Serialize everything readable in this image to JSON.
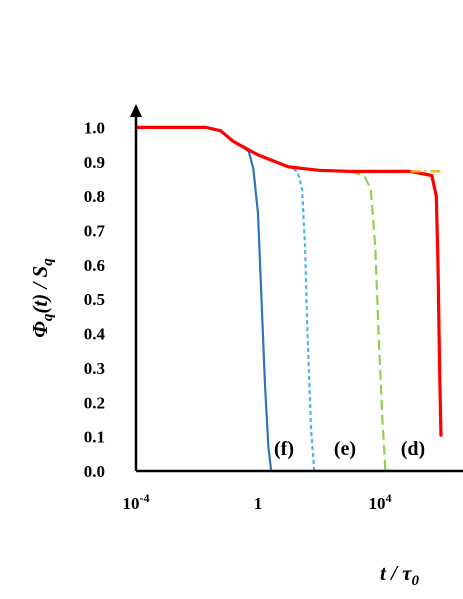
{
  "chart_data": {
    "type": "line",
    "title": "",
    "xlabel": "t / τ0",
    "ylabel": "Φq(t) / Sq",
    "xscale": "log",
    "xlim": [
      0.0001,
      1000000
    ],
    "ylim": [
      0,
      1.05
    ],
    "x_ticks": [
      {
        "value": 0.0001,
        "base": "10",
        "exp": "-4"
      },
      {
        "value": 1,
        "base": "1",
        "exp": ""
      },
      {
        "value": 10000,
        "base": "10",
        "exp": "4"
      }
    ],
    "y_ticks": [
      "0.0",
      "0.1",
      "0.2",
      "0.3",
      "0.4",
      "0.5",
      "0.6",
      "0.7",
      "0.8",
      "0.9",
      "1.0"
    ],
    "grid": false,
    "legend": "none",
    "series": [
      {
        "label": "(f)",
        "color": "#2e75b6",
        "dash": "solid",
        "points": [
          [
            0.0001,
            1.0
          ],
          [
            0.02,
            1.0
          ],
          [
            0.06,
            0.99
          ],
          [
            0.15,
            0.96
          ],
          [
            0.3,
            0.945
          ],
          [
            0.5,
            0.93
          ],
          [
            0.7,
            0.88
          ],
          [
            1.0,
            0.75
          ],
          [
            1.3,
            0.5
          ],
          [
            1.7,
            0.25
          ],
          [
            2.2,
            0.07
          ],
          [
            2.7,
            0.0
          ],
          [
            20000,
            0.0
          ]
        ]
      },
      {
        "label": "(e)",
        "color": "#4fb3e8",
        "dash": "short",
        "points": [
          [
            0.0001,
            1.0
          ],
          [
            0.02,
            1.0
          ],
          [
            0.06,
            0.99
          ],
          [
            0.15,
            0.96
          ],
          [
            0.3,
            0.945
          ],
          [
            1,
            0.92
          ],
          [
            5,
            0.895
          ],
          [
            12,
            0.885
          ],
          [
            20,
            0.87
          ],
          [
            28,
            0.82
          ],
          [
            35,
            0.65
          ],
          [
            42,
            0.4
          ],
          [
            55,
            0.12
          ],
          [
            70,
            0.0
          ],
          [
            20000,
            0.0
          ]
        ]
      },
      {
        "label": "(d)",
        "color": "#92d050",
        "dash": "long",
        "points": [
          [
            0.0001,
            1.0
          ],
          [
            0.02,
            1.0
          ],
          [
            0.06,
            0.99
          ],
          [
            0.15,
            0.96
          ],
          [
            0.3,
            0.945
          ],
          [
            1,
            0.92
          ],
          [
            10,
            0.885
          ],
          [
            100,
            0.875
          ],
          [
            1000,
            0.872
          ],
          [
            3000,
            0.86
          ],
          [
            5000,
            0.82
          ],
          [
            7000,
            0.65
          ],
          [
            9000,
            0.4
          ],
          [
            12000,
            0.15
          ],
          [
            15000,
            0.0
          ],
          [
            1000000,
            0.0
          ]
        ]
      },
      {
        "label": "",
        "color": "#ff0000",
        "dash": "solid",
        "points": [
          [
            0.0001,
            1.0
          ],
          [
            0.02,
            1.0
          ],
          [
            0.06,
            0.99
          ],
          [
            0.15,
            0.96
          ],
          [
            0.3,
            0.945
          ],
          [
            1,
            0.92
          ],
          [
            10,
            0.885
          ],
          [
            100,
            0.875
          ],
          [
            1000,
            0.872
          ],
          [
            100000,
            0.872
          ],
          [
            500000,
            0.86
          ],
          [
            700000,
            0.8
          ],
          [
            800000,
            0.6
          ],
          [
            900000,
            0.3
          ],
          [
            1000000,
            0.1
          ]
        ]
      },
      {
        "label": "",
        "color": "#e040d0",
        "dash": "dashdot",
        "points": [
          [
            100000,
            0.872
          ],
          [
            1000000,
            0.872
          ]
        ]
      },
      {
        "label": "",
        "color": "#f5c000",
        "dash": "dashdot",
        "points": [
          [
            100000,
            0.872
          ],
          [
            1000000,
            0.872
          ]
        ]
      }
    ],
    "annotations": [
      "(f)",
      "(e)",
      "(d)"
    ]
  }
}
